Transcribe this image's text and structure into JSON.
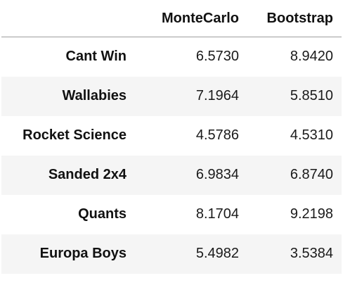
{
  "table": {
    "columns": [
      "MonteCarlo",
      "Bootstrap"
    ],
    "rows": [
      {
        "label": "Cant Win",
        "values": [
          "6.5730",
          "8.9420"
        ]
      },
      {
        "label": "Wallabies",
        "values": [
          "7.1964",
          "5.8510"
        ]
      },
      {
        "label": "Rocket Science",
        "values": [
          "4.5786",
          "4.5310"
        ]
      },
      {
        "label": "Sanded 2x4",
        "values": [
          "6.9834",
          "6.8740"
        ]
      },
      {
        "label": "Quants",
        "values": [
          "8.1704",
          "9.2198"
        ]
      },
      {
        "label": "Europa Boys",
        "values": [
          "5.4982",
          "3.5384"
        ]
      }
    ]
  },
  "colors": {
    "stripe": "#f5f5f5",
    "header_rule": "#9e9e9e",
    "text": "#111111"
  }
}
